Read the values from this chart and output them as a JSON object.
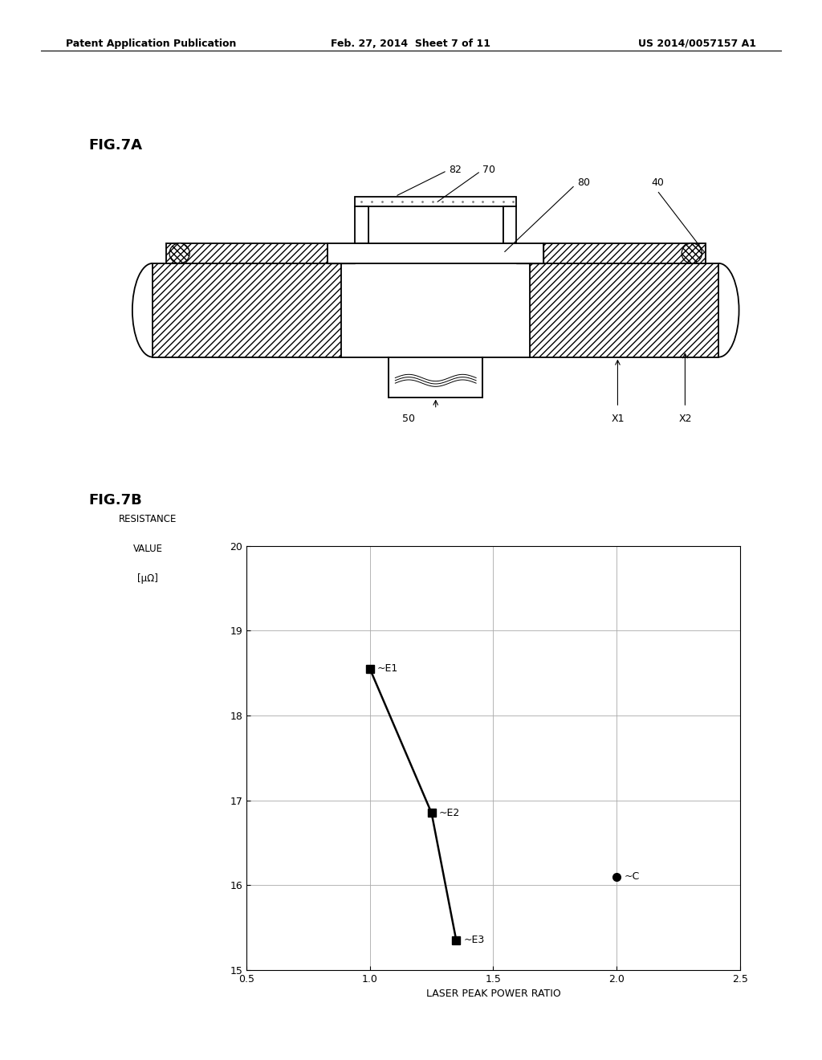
{
  "header_left": "Patent Application Publication",
  "header_mid": "Feb. 27, 2014  Sheet 7 of 11",
  "header_right": "US 2014/0057157 A1",
  "fig7a_label": "FIG.7A",
  "fig7b_label": "FIG.7B",
  "graph_xlim": [
    0.5,
    2.5
  ],
  "graph_ylim": [
    15,
    20
  ],
  "graph_xticks": [
    0.5,
    1.0,
    1.5,
    2.0,
    2.5
  ],
  "graph_yticks": [
    15,
    16,
    17,
    18,
    19,
    20
  ],
  "xlabel": "LASER PEAK POWER RATIO",
  "ylabel_line1": "RESISTANCE",
  "ylabel_line2": "VALUE",
  "ylabel_line3": "[μΩ]",
  "e_points": [
    [
      1.0,
      18.55
    ],
    [
      1.25,
      16.85
    ],
    [
      1.35,
      15.35
    ]
  ],
  "c_point": [
    2.0,
    16.1
  ],
  "e_labels": [
    "E1",
    "E2",
    "E3"
  ],
  "c_label": "C",
  "background_color": "#ffffff"
}
